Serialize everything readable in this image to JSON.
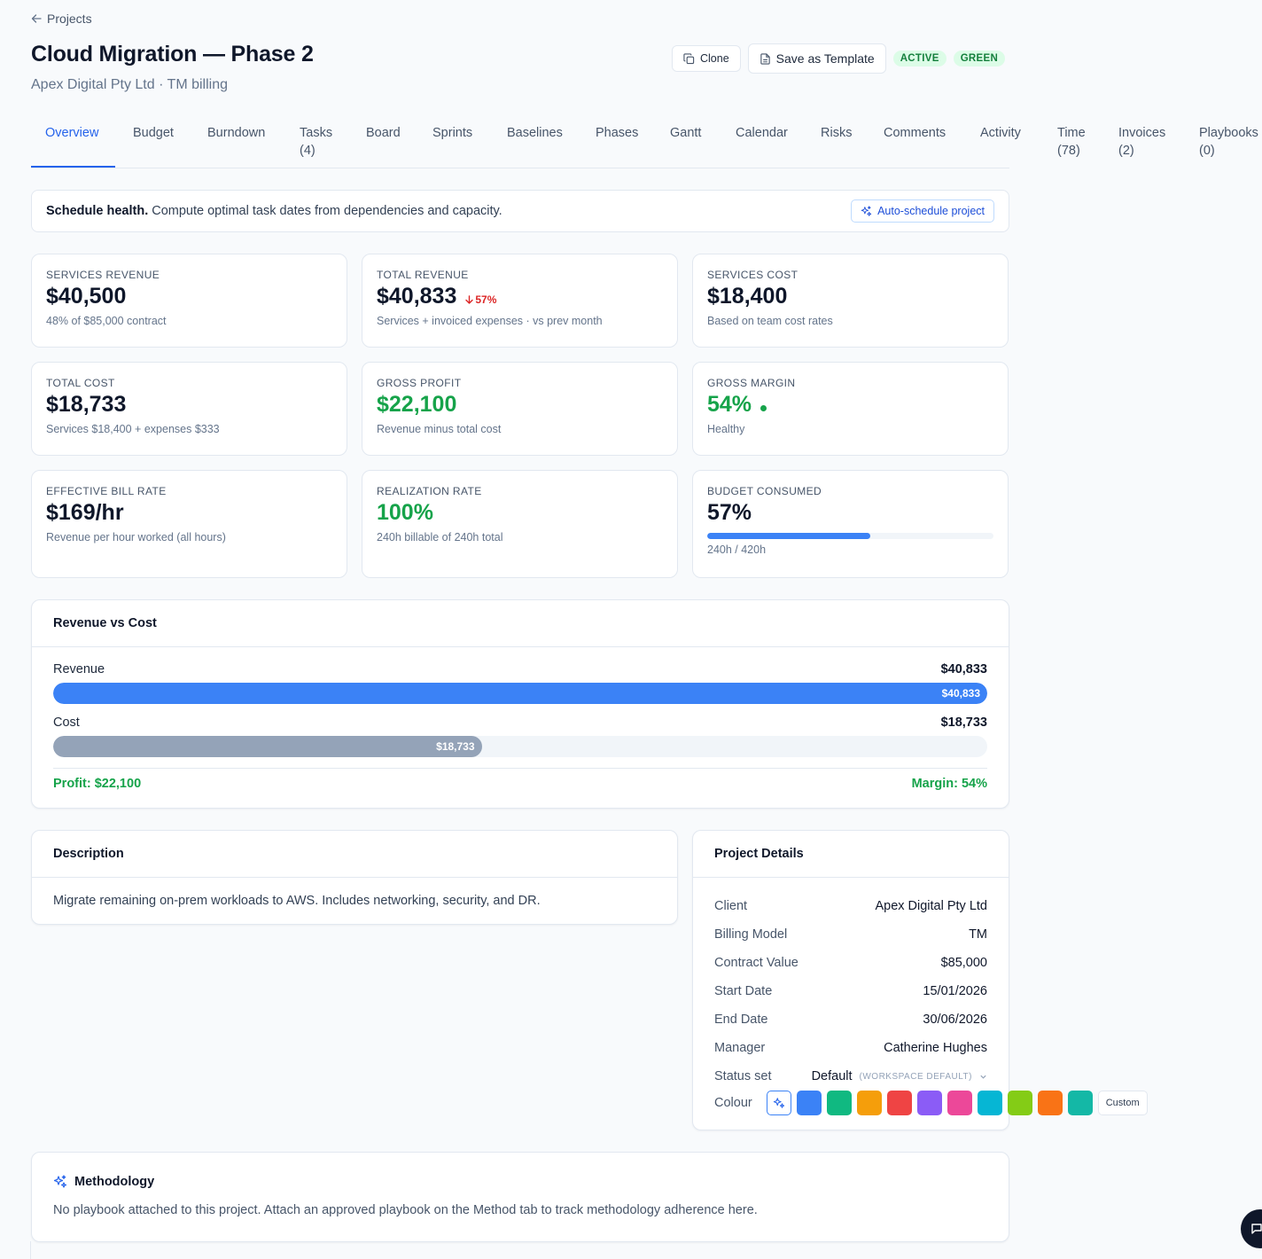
{
  "nav": {
    "back_label": "Projects"
  },
  "header": {
    "title": "Cloud Migration — Phase 2",
    "subtitle": "Apex Digital Pty Ltd · TM billing",
    "clone_label": "Clone",
    "template_label": "Save as Template",
    "status_badge": "ACTIVE",
    "health_badge": "GREEN"
  },
  "tabs": [
    {
      "line1": "Overview",
      "line2": ""
    },
    {
      "line1": "Budget",
      "line2": ""
    },
    {
      "line1": "Burndown",
      "line2": ""
    },
    {
      "line1": "Tasks",
      "line2": "(4)"
    },
    {
      "line1": "Board",
      "line2": ""
    },
    {
      "line1": "Sprints",
      "line2": ""
    },
    {
      "line1": "Baselines",
      "line2": ""
    },
    {
      "line1": "Phases",
      "line2": ""
    },
    {
      "line1": "Gantt",
      "line2": ""
    },
    {
      "line1": "Calendar",
      "line2": ""
    },
    {
      "line1": "Risks",
      "line2": ""
    },
    {
      "line1": "Comments",
      "line2": ""
    },
    {
      "line1": "Activity",
      "line2": ""
    },
    {
      "line1": "Time",
      "line2": "(78)"
    },
    {
      "line1": "Invoices",
      "line2": "(2)"
    },
    {
      "line1": "Playbooks",
      "line2": "(0)"
    }
  ],
  "schedule": {
    "bold": "Schedule health.",
    "text": "Compute optimal task dates from dependencies and capacity.",
    "button": "Auto-schedule project"
  },
  "kpis": {
    "services_revenue": {
      "label": "Services Revenue",
      "value": "$40,500",
      "sub": "48% of $85,000 contract"
    },
    "total_revenue": {
      "label": "Total Revenue",
      "value": "$40,833",
      "delta": "57%",
      "sub": "Services + invoiced expenses · vs prev month"
    },
    "services_cost": {
      "label": "Services Cost",
      "value": "$18,400",
      "sub": "Based on team cost rates"
    },
    "total_cost": {
      "label": "Total Cost",
      "value": "$18,733",
      "sub": "Services $18,400 + expenses $333"
    },
    "gross_profit": {
      "label": "Gross Profit",
      "value": "$22,100",
      "sub": "Revenue minus total cost"
    },
    "gross_margin": {
      "label": "Gross Margin",
      "value": "54%",
      "sub": "Healthy"
    },
    "bill_rate": {
      "label": "Effective Bill Rate",
      "value": "$169/hr",
      "sub": "Revenue per hour worked (all hours)"
    },
    "realization": {
      "label": "Realization Rate",
      "value": "100%",
      "sub": "240h billable of 240h total"
    },
    "budget": {
      "label": "Budget Consumed",
      "value": "57%",
      "sub": "240h / 420h",
      "fraction": 0.57
    }
  },
  "revenue_vs_cost": {
    "title": "Revenue vs Cost",
    "revenue_label": "Revenue",
    "revenue_amount": "$40,833",
    "revenue_value": 40833,
    "cost_label": "Cost",
    "cost_amount": "$18,733",
    "cost_value": 18733,
    "profit": "Profit: $22,100",
    "margin": "Margin: 54%",
    "revenue_color": "#3b82f6",
    "cost_color": "#94a3b8"
  },
  "description": {
    "title": "Description",
    "text": "Migrate remaining on-prem workloads to AWS. Includes networking, security, and DR."
  },
  "details": {
    "title": "Project Details",
    "rows": [
      {
        "key": "Client",
        "value": "Apex Digital Pty Ltd"
      },
      {
        "key": "Billing Model",
        "value": "TM"
      },
      {
        "key": "Contract Value",
        "value": "$85,000"
      },
      {
        "key": "Start Date",
        "value": "15/01/2026"
      },
      {
        "key": "End Date",
        "value": "30/06/2026"
      },
      {
        "key": "Manager",
        "value": "Catherine Hughes"
      }
    ],
    "status_set_label": "Status set",
    "status_set_value": "Default",
    "status_set_note": "(WORKSPACE DEFAULT)",
    "colour_label": "Colour",
    "colours": [
      "#3b82f6",
      "#10b981",
      "#f59e0b",
      "#ef4444",
      "#8b5cf6",
      "#ec4899",
      "#06b6d4",
      "#84cc16",
      "#f97316",
      "#14b8a6"
    ],
    "custom_label": "Custom"
  },
  "methodology": {
    "title": "Methodology",
    "text": "No playbook attached to this project. Attach an approved playbook on the Method tab to track methodology adherence here."
  }
}
